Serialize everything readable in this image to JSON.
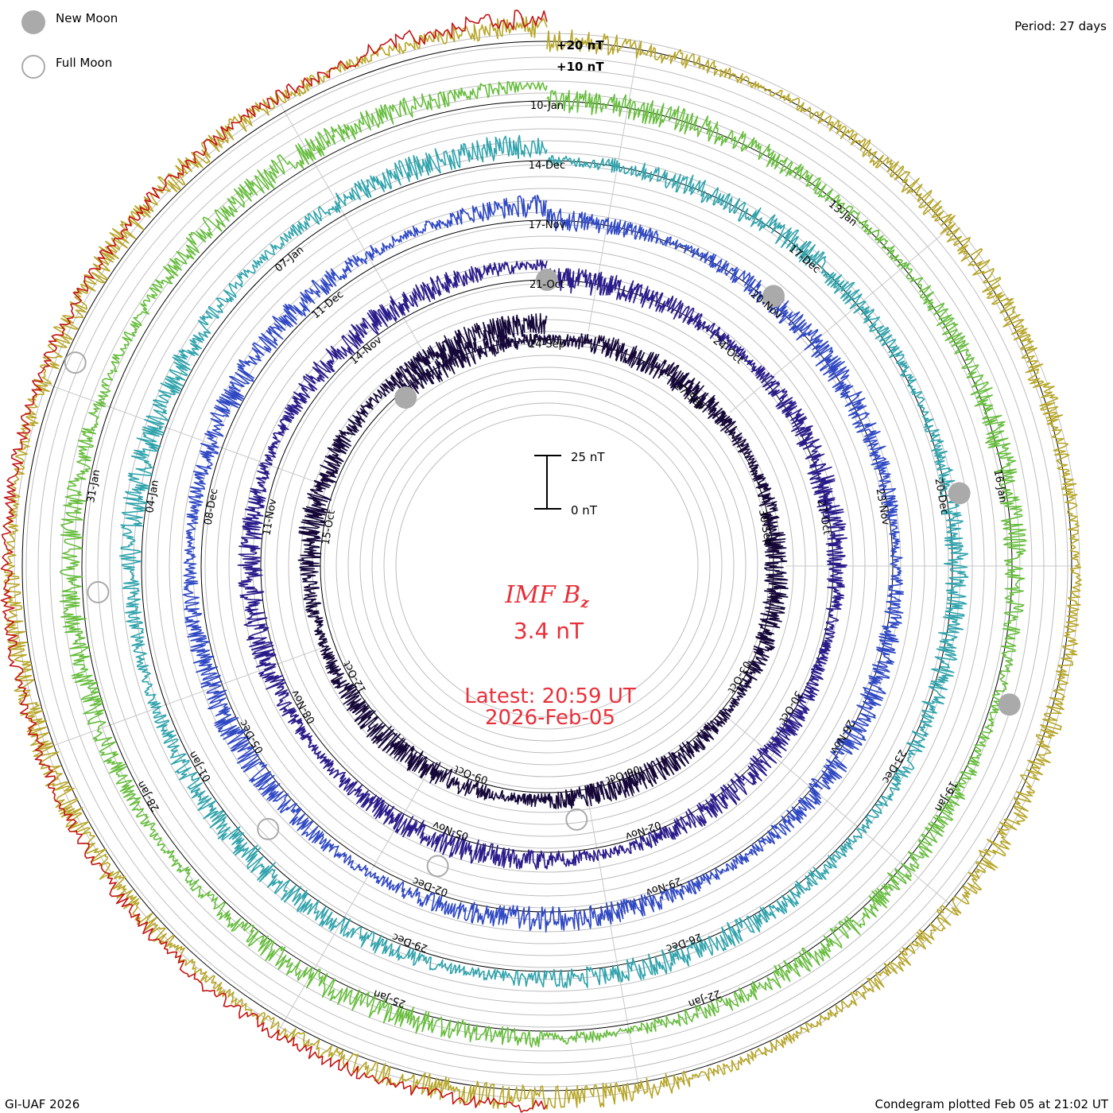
{
  "legend": {
    "new_moon": {
      "label": "New Moon",
      "fill": "#aaaaaa"
    },
    "full_moon": {
      "label": "Full Moon",
      "stroke": "#aaaaaa"
    }
  },
  "period_label": "Period: 27 days",
  "footer_left": "GI-UAF 2026",
  "footer_right": "Condegram plotted Feb 05 at 21:02 UT",
  "center": {
    "quantity": "IMF B",
    "subscript": "z",
    "value": "3.4 nT",
    "latest": "Latest: 20:59 UT",
    "date": "2026-Feb-05",
    "color": "#e8303a"
  },
  "scale_bar": {
    "top_label": "25 nT",
    "bottom_label": "0 nT"
  },
  "reference_labels": [
    "+20 nT",
    "+10 nT"
  ],
  "chart_data": {
    "type": "line",
    "layout": "spiral condegram",
    "period_days": 27,
    "ylabel": "IMF Bz",
    "units": "nT",
    "grid": true,
    "series": [
      {
        "color": "#16093a",
        "start": "2025-Sep-18",
        "end": "2025-Oct-15"
      },
      {
        "color": "#2a1b8a",
        "start": "2025-Oct-15",
        "end": "2025-Nov-11"
      },
      {
        "color": "#2f48c4",
        "start": "2025-Nov-11",
        "end": "2025-Dec-08"
      },
      {
        "color": "#2fa3ac",
        "start": "2025-Dec-08",
        "end": "2026-Jan-04"
      },
      {
        "color": "#66bd3c",
        "start": "2026-Jan-04",
        "end": "2026-Jan-31"
      },
      {
        "color": "#b7a627",
        "start": "2026-Jan-31",
        "end": "2026-Feb-05"
      },
      {
        "color": "#c41414"
      }
    ],
    "date_labels": [
      {
        "text": "24-Sep",
        "ring": 0,
        "angle": 0
      },
      {
        "text": "27-Sep",
        "ring": 0,
        "angle": 40
      },
      {
        "text": "30-Sep",
        "ring": 0,
        "angle": 80
      },
      {
        "text": "03-Oct",
        "ring": 0,
        "angle": 120
      },
      {
        "text": "06-Oct",
        "ring": 0,
        "angle": 160
      },
      {
        "text": "09-Oct",
        "ring": 0,
        "angle": 200
      },
      {
        "text": "12-Oct",
        "ring": 0,
        "angle": 240
      },
      {
        "text": "15-Oct",
        "ring": 0,
        "angle": 280
      },
      {
        "text": "21-Oct",
        "ring": 1,
        "angle": 0
      },
      {
        "text": "24-Oct",
        "ring": 1,
        "angle": 40
      },
      {
        "text": "27-Oct",
        "ring": 1,
        "angle": 80
      },
      {
        "text": "30-Oct",
        "ring": 1,
        "angle": 120
      },
      {
        "text": "02-Nov",
        "ring": 1,
        "angle": 160
      },
      {
        "text": "05-Nov",
        "ring": 1,
        "angle": 200
      },
      {
        "text": "08-Nov",
        "ring": 1,
        "angle": 240
      },
      {
        "text": "11-Nov",
        "ring": 1,
        "angle": 280
      },
      {
        "text": "14-Nov",
        "ring": 1,
        "angle": 320
      },
      {
        "text": "17-Nov",
        "ring": 2,
        "angle": 0
      },
      {
        "text": "20-Nov",
        "ring": 2,
        "angle": 40
      },
      {
        "text": "23-Nov",
        "ring": 2,
        "angle": 80
      },
      {
        "text": "26-Nov",
        "ring": 2,
        "angle": 120
      },
      {
        "text": "29-Nov",
        "ring": 2,
        "angle": 160
      },
      {
        "text": "02-Dec",
        "ring": 2,
        "angle": 200
      },
      {
        "text": "05-Dec",
        "ring": 2,
        "angle": 240
      },
      {
        "text": "08-Dec",
        "ring": 2,
        "angle": 280
      },
      {
        "text": "11-Dec",
        "ring": 2,
        "angle": 320
      },
      {
        "text": "14-Dec",
        "ring": 3,
        "angle": 0
      },
      {
        "text": "17-Dec",
        "ring": 3,
        "angle": 40
      },
      {
        "text": "20-Dec",
        "ring": 3,
        "angle": 80
      },
      {
        "text": "23-Dec",
        "ring": 3,
        "angle": 120
      },
      {
        "text": "26-Dec",
        "ring": 3,
        "angle": 160
      },
      {
        "text": "29-Dec",
        "ring": 3,
        "angle": 200
      },
      {
        "text": "01-Jan",
        "ring": 3,
        "angle": 240
      },
      {
        "text": "04-Jan",
        "ring": 3,
        "angle": 280
      },
      {
        "text": "07-Jan",
        "ring": 3,
        "angle": 320
      },
      {
        "text": "10-Jan",
        "ring": 4,
        "angle": 0
      },
      {
        "text": "13-Jan",
        "ring": 4,
        "angle": 40
      },
      {
        "text": "16-Jan",
        "ring": 4,
        "angle": 80
      },
      {
        "text": "19-Jan",
        "ring": 4,
        "angle": 120
      },
      {
        "text": "22-Jan",
        "ring": 4,
        "angle": 160
      },
      {
        "text": "25-Jan",
        "ring": 4,
        "angle": 200
      },
      {
        "text": "28-Jan",
        "ring": 4,
        "angle": 240
      },
      {
        "text": "31-Jan",
        "ring": 4,
        "angle": 280
      }
    ],
    "moons": [
      {
        "type": "new",
        "date": "2025-Sep-21"
      },
      {
        "type": "full",
        "date": "2025-Oct-07"
      },
      {
        "type": "new",
        "date": "2025-Oct-21"
      },
      {
        "type": "full",
        "date": "2025-Nov-05"
      },
      {
        "type": "new",
        "date": "2025-Nov-20"
      },
      {
        "type": "full",
        "date": "2025-Dec-04"
      },
      {
        "type": "new",
        "date": "2025-Dec-20"
      },
      {
        "type": "full",
        "date": "2026-Jan-03"
      },
      {
        "type": "new",
        "date": "2026-Jan-18"
      },
      {
        "type": "full",
        "date": "2026-Feb-01"
      }
    ]
  }
}
